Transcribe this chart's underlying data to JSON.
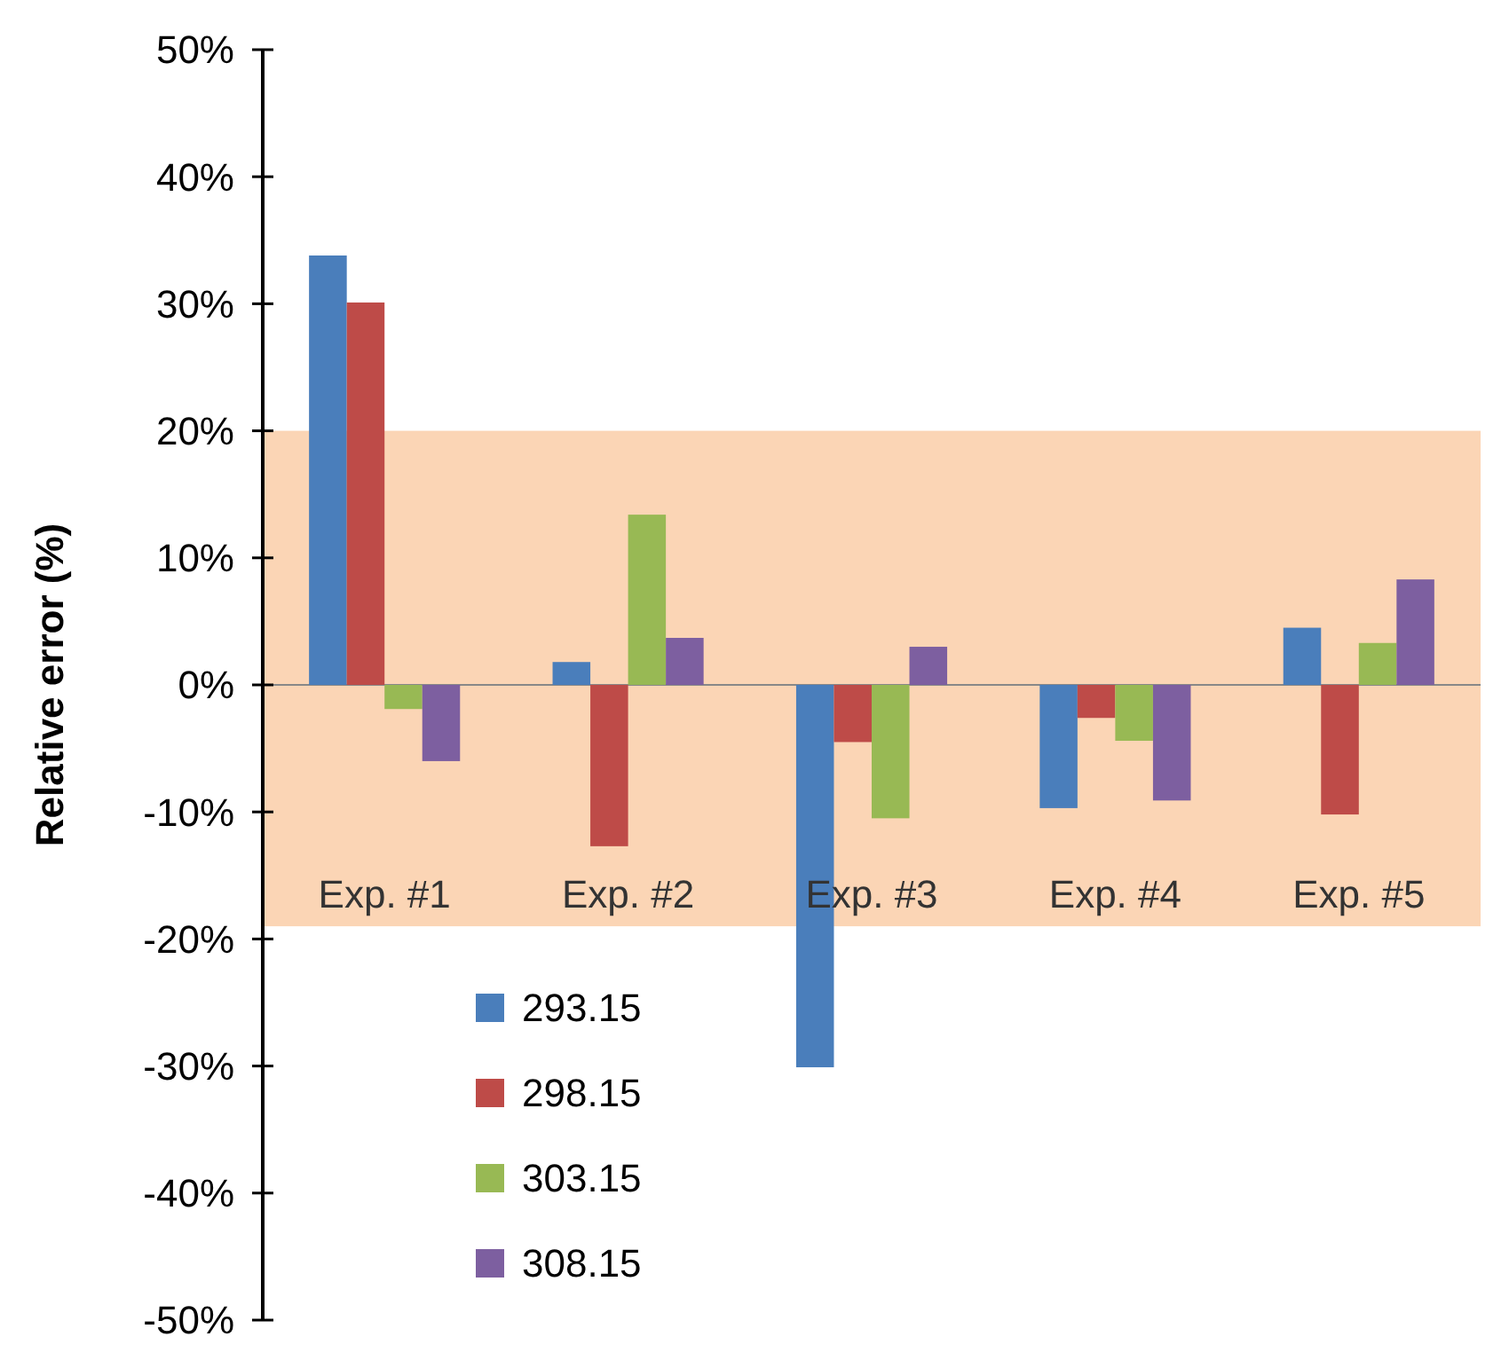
{
  "chart_data": {
    "type": "bar",
    "ylabel": "Relative error (%)",
    "categories": [
      "Exp. #1",
      "Exp. #2",
      "Exp. #3",
      "Exp. #4",
      "Exp. #5"
    ],
    "series": [
      {
        "name": "293.15",
        "color": "#4a7ebb",
        "values": [
          33.8,
          1.8,
          -30.1,
          -9.7,
          4.5
        ]
      },
      {
        "name": "298.15",
        "color": "#be4b48",
        "values": [
          30.1,
          -12.7,
          -4.5,
          -2.6,
          -10.2
        ]
      },
      {
        "name": "303.15",
        "color": "#98b954",
        "values": [
          -1.9,
          13.4,
          -10.5,
          -4.4,
          3.3
        ]
      },
      {
        "name": "308.15",
        "color": "#7d5fa0",
        "values": [
          -6.0,
          3.7,
          3.0,
          -9.1,
          8.3
        ]
      }
    ],
    "ylim": [
      -50,
      50
    ],
    "yticks": [
      {
        "value": -50,
        "label": "-50%"
      },
      {
        "value": -40,
        "label": "-40%"
      },
      {
        "value": -30,
        "label": "-30%"
      },
      {
        "value": -20,
        "label": "-20%"
      },
      {
        "value": -10,
        "label": "-10%"
      },
      {
        "value": 0,
        "label": "0%"
      },
      {
        "value": 10,
        "label": "10%"
      },
      {
        "value": 20,
        "label": "20%"
      },
      {
        "value": 30,
        "label": "30%"
      },
      {
        "value": 40,
        "label": "40%"
      },
      {
        "value": 50,
        "label": "50%"
      }
    ],
    "bands": [
      {
        "axis": "y",
        "from": -19,
        "to": 20,
        "color": "#fbd5b5"
      }
    ],
    "legend": "bottom left"
  }
}
